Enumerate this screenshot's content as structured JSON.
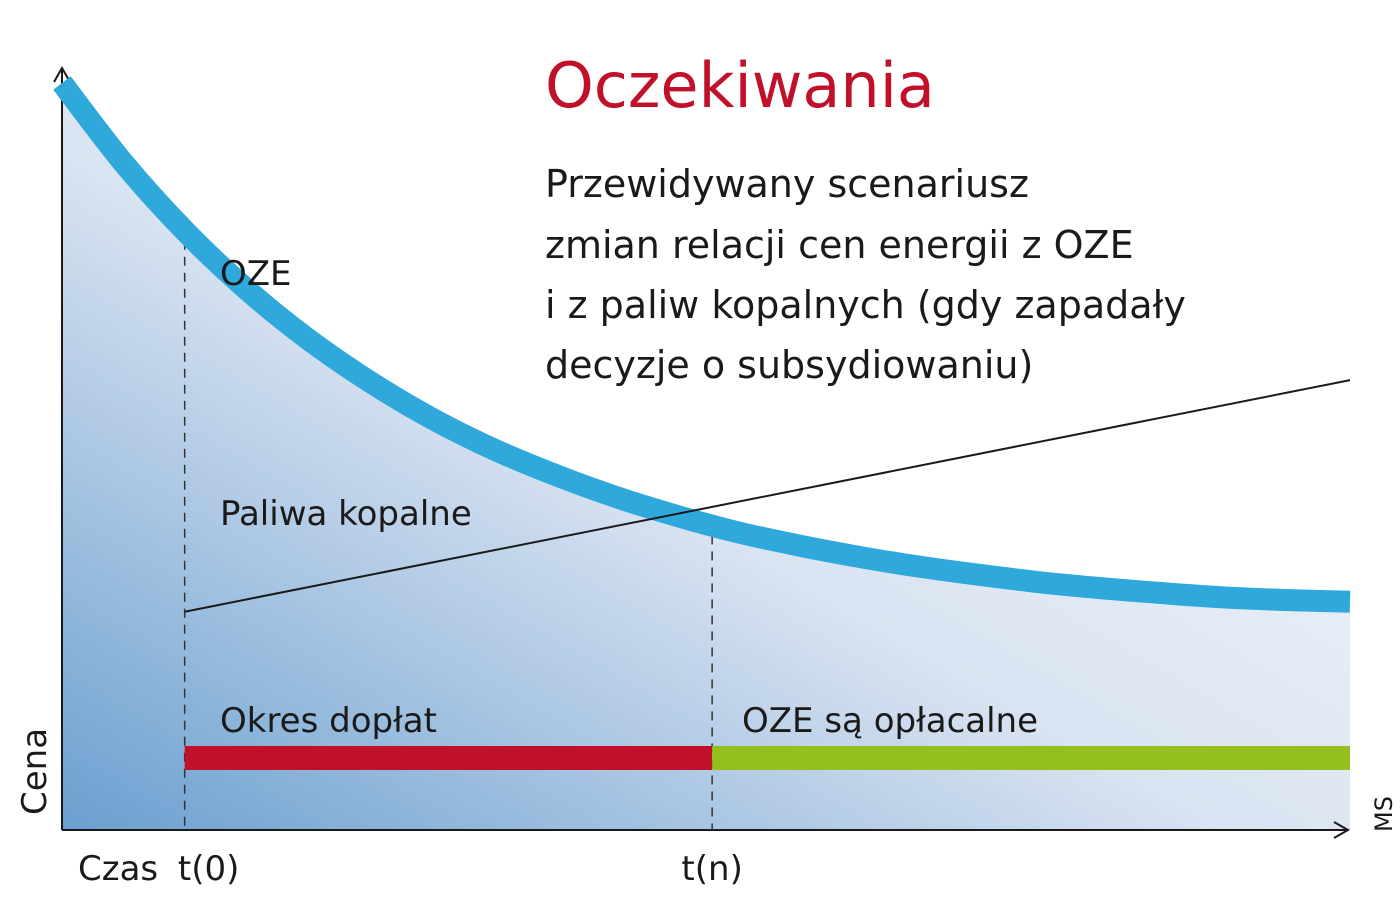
{
  "chart_data": {
    "type": "line",
    "title": "Oczekiwania",
    "subtitle_lines": [
      "Przewidywany scenariusz",
      "zmian relacji cen energii z OZE",
      "i z paliw kopalnych (gdy zapadały",
      "decyzje o subsydiowaniu)"
    ],
    "xlabel": "Czas",
    "ylabel": "Cena",
    "x_ticks": [
      {
        "label": "t(0)",
        "x": 1
      },
      {
        "label": "t(n)",
        "x": 5.3
      }
    ],
    "xlim": [
      0,
      10.5
    ],
    "ylim": [
      0,
      10
    ],
    "grid": false,
    "series": [
      {
        "name": "OZE",
        "style": "thick-curve",
        "x": [
          0,
          0.5,
          1,
          1.5,
          2,
          2.5,
          3,
          3.5,
          4,
          4.5,
          5,
          5.5,
          6,
          6.5,
          7,
          7.5,
          8,
          8.5,
          9,
          9.5,
          10,
          10.5
        ],
        "y": [
          9.0,
          8.04,
          7.22,
          6.52,
          5.92,
          5.41,
          4.97,
          4.6,
          4.29,
          4.02,
          3.79,
          3.59,
          3.43,
          3.29,
          3.17,
          3.07,
          2.98,
          2.91,
          2.85,
          2.8,
          2.77,
          2.75
        ]
      },
      {
        "name": "Paliwa kopalne",
        "style": "thin-line",
        "x": [
          1,
          10.5
        ],
        "y": [
          2.63,
          5.42
        ]
      }
    ],
    "periods": [
      {
        "label": "Okres dopłat",
        "x0": 1,
        "x1": 5.3
      },
      {
        "label": "OZE są opłacalne",
        "x0": 5.3,
        "x1": 10.5
      }
    ],
    "credit": "MS"
  },
  "colors": {
    "title": "#c0102a",
    "oze_curve": "#2fa9dc",
    "fossil_line": "#1a1a1a",
    "subsidy_bar": "#c0102a",
    "profitable_bar": "#93c01f",
    "area_dark": "#6a9fcf",
    "area_light": "#ffffff"
  }
}
